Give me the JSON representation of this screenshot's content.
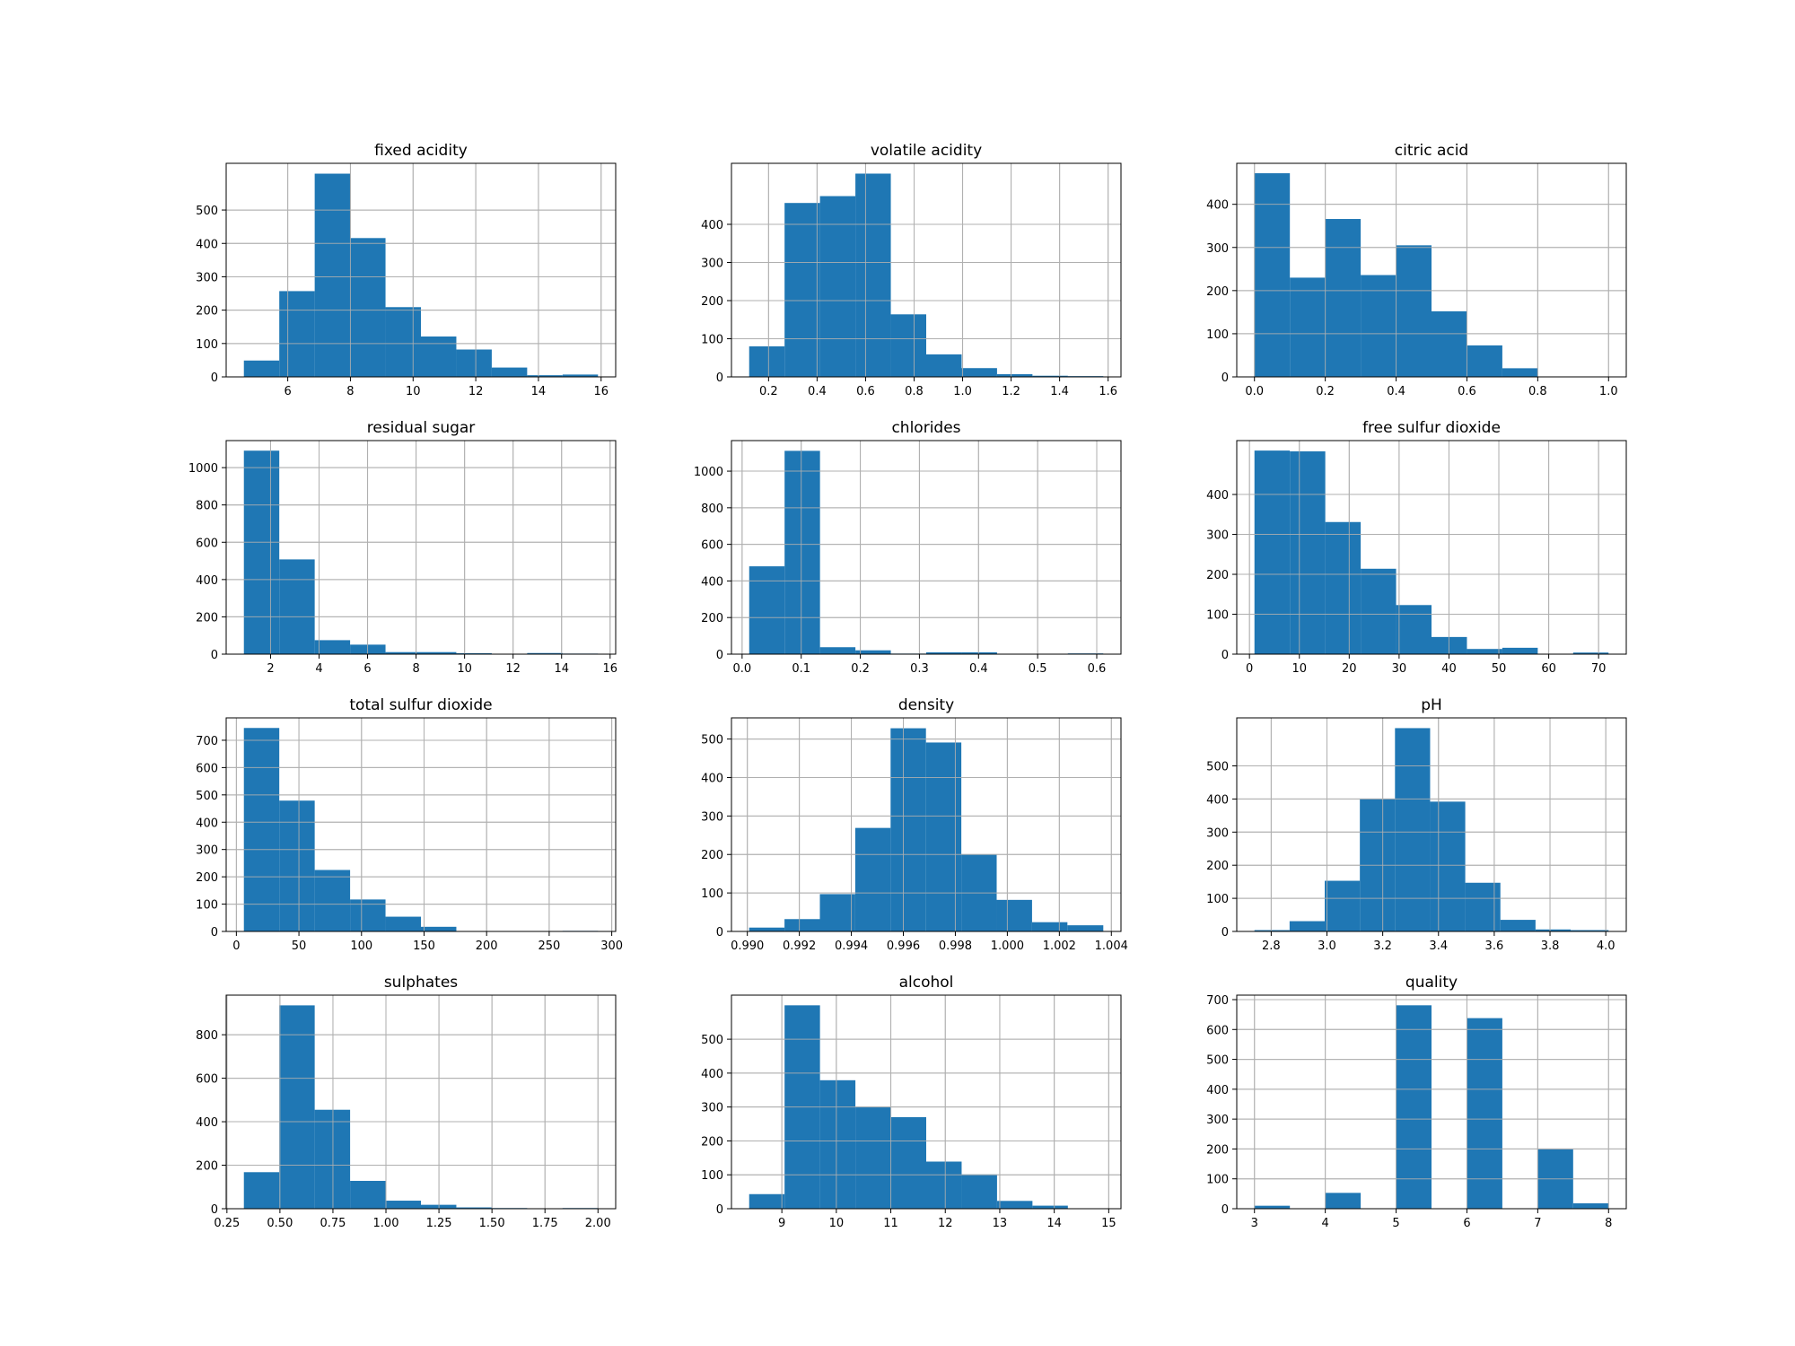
{
  "colors": {
    "bar": "#1f77b4",
    "grid": "#b0b0b0",
    "frame": "#000000"
  },
  "chart_data": [
    {
      "type": "bar",
      "title": "fixed acidity",
      "grid": true,
      "bin_edges": [
        4.6,
        5.73,
        6.86,
        7.99,
        9.12,
        10.25,
        11.38,
        12.51,
        13.64,
        14.77,
        15.9
      ],
      "values": [
        49,
        257,
        609,
        416,
        209,
        121,
        82,
        28,
        5,
        7
      ],
      "xlim": [
        4.035,
        16.465
      ],
      "ylim": [
        0,
        640
      ],
      "xticks": [
        6,
        8,
        10,
        12,
        14,
        16
      ],
      "xtick_labels": [
        "6",
        "8",
        "10",
        "12",
        "14",
        "16"
      ],
      "yticks": [
        0,
        100,
        200,
        300,
        400,
        500
      ],
      "ytick_labels": [
        "0",
        "100",
        "200",
        "300",
        "400",
        "500"
      ]
    },
    {
      "type": "bar",
      "title": "volatile acidity",
      "grid": true,
      "bin_edges": [
        0.12,
        0.266,
        0.412,
        0.558,
        0.704,
        0.85,
        0.996,
        1.142,
        1.288,
        1.434,
        1.58
      ],
      "values": [
        80,
        456,
        474,
        533,
        164,
        59,
        23,
        7,
        3,
        2
      ],
      "xlim": [
        0.047,
        1.653
      ],
      "ylim": [
        0,
        560
      ],
      "xticks": [
        0.2,
        0.4,
        0.6,
        0.8,
        1.0,
        1.2,
        1.4,
        1.6
      ],
      "xtick_labels": [
        "0.2",
        "0.4",
        "0.6",
        "0.8",
        "1.0",
        "1.2",
        "1.4",
        "1.6"
      ],
      "yticks": [
        0,
        100,
        200,
        300,
        400
      ],
      "ytick_labels": [
        "0",
        "100",
        "200",
        "300",
        "400"
      ]
    },
    {
      "type": "bar",
      "title": "citric acid",
      "grid": true,
      "bin_edges": [
        0.0,
        0.1,
        0.2,
        0.3,
        0.4,
        0.5,
        0.6,
        0.7,
        0.8,
        0.9,
        1.0
      ],
      "values": [
        472,
        230,
        366,
        236,
        305,
        152,
        73,
        20,
        0,
        1
      ],
      "xlim": [
        -0.05,
        1.05
      ],
      "ylim": [
        0,
        495
      ],
      "xticks": [
        0.0,
        0.2,
        0.4,
        0.6,
        0.8,
        1.0
      ],
      "xtick_labels": [
        "0.0",
        "0.2",
        "0.4",
        "0.6",
        "0.8",
        "1.0"
      ],
      "yticks": [
        0,
        100,
        200,
        300,
        400
      ],
      "ytick_labels": [
        "0",
        "100",
        "200",
        "300",
        "400"
      ]
    },
    {
      "type": "bar",
      "title": "residual sugar",
      "grid": true,
      "bin_edges": [
        0.9,
        2.36,
        3.82,
        5.28,
        6.74,
        8.2,
        9.66,
        11.12,
        12.58,
        14.04,
        15.5
      ],
      "values": [
        1091,
        508,
        75,
        51,
        11,
        11,
        5,
        0,
        6,
        3
      ],
      "xlim": [
        0.17,
        16.23
      ],
      "ylim": [
        0,
        1145
      ],
      "xticks": [
        2,
        4,
        6,
        8,
        10,
        12,
        14,
        16
      ],
      "xtick_labels": [
        "2",
        "4",
        "6",
        "8",
        "10",
        "12",
        "14",
        "16"
      ],
      "yticks": [
        0,
        200,
        400,
        600,
        800,
        1000
      ],
      "ytick_labels": [
        "0",
        "200",
        "400",
        "600",
        "800",
        "1000"
      ]
    },
    {
      "type": "bar",
      "title": "chlorides",
      "grid": true,
      "bin_edges": [
        0.012,
        0.0719,
        0.1318,
        0.1917,
        0.2516,
        0.3115,
        0.3714,
        0.4313,
        0.4912,
        0.5511,
        0.611
      ],
      "values": [
        480,
        1111,
        38,
        21,
        3,
        10,
        10,
        2,
        0,
        4
      ],
      "xlim": [
        -0.018,
        0.641
      ],
      "ylim": [
        0,
        1167
      ],
      "xticks": [
        0.0,
        0.1,
        0.2,
        0.3,
        0.4,
        0.5,
        0.6
      ],
      "xtick_labels": [
        "0.0",
        "0.1",
        "0.2",
        "0.3",
        "0.4",
        "0.5",
        "0.6"
      ],
      "yticks": [
        0,
        200,
        400,
        600,
        800,
        1000
      ],
      "ytick_labels": [
        "0",
        "200",
        "400",
        "600",
        "800",
        "1000"
      ]
    },
    {
      "type": "bar",
      "title": "free sulfur dioxide",
      "grid": true,
      "bin_edges": [
        1,
        8.1,
        15.2,
        22.3,
        29.4,
        36.5,
        43.6,
        50.7,
        57.8,
        64.9,
        72
      ],
      "values": [
        510,
        508,
        331,
        214,
        123,
        43,
        13,
        16,
        0,
        4
      ],
      "xlim": [
        -2.55,
        75.55
      ],
      "ylim": [
        0,
        535
      ],
      "xticks": [
        0,
        10,
        20,
        30,
        40,
        50,
        60,
        70
      ],
      "xtick_labels": [
        "0",
        "10",
        "20",
        "30",
        "40",
        "50",
        "60",
        "70"
      ],
      "yticks": [
        0,
        100,
        200,
        300,
        400
      ],
      "ytick_labels": [
        "0",
        "100",
        "200",
        "300",
        "400"
      ]
    },
    {
      "type": "bar",
      "title": "total sulfur dioxide",
      "grid": true,
      "bin_edges": [
        6,
        34.3,
        62.6,
        90.9,
        119.2,
        147.5,
        175.8,
        204.1,
        232.4,
        260.7,
        289
      ],
      "values": [
        745,
        479,
        225,
        117,
        54,
        17,
        0,
        0,
        0,
        2
      ],
      "xlim": [
        -8.15,
        303.15
      ],
      "ylim": [
        0,
        782
      ],
      "xticks": [
        0,
        50,
        100,
        150,
        200,
        250,
        300
      ],
      "xtick_labels": [
        "0",
        "50",
        "100",
        "150",
        "200",
        "250",
        "300"
      ],
      "yticks": [
        0,
        100,
        200,
        300,
        400,
        500,
        600,
        700
      ],
      "ytick_labels": [
        "0",
        "100",
        "200",
        "300",
        "400",
        "500",
        "600",
        "700"
      ]
    },
    {
      "type": "bar",
      "title": "density",
      "grid": true,
      "bin_edges": [
        0.99007,
        0.99143,
        0.99279,
        0.99415,
        0.99551,
        0.99687,
        0.99823,
        0.99959,
        1.00095,
        1.00231,
        1.00369
      ],
      "values": [
        10,
        32,
        97,
        269,
        528,
        491,
        200,
        82,
        24,
        16
      ],
      "xlim": [
        0.98939,
        1.00437
      ],
      "ylim": [
        0,
        555
      ],
      "xticks": [
        0.99,
        0.992,
        0.994,
        0.996,
        0.998,
        1.0,
        1.002,
        1.004
      ],
      "xtick_labels": [
        "0.990",
        "0.992",
        "0.994",
        "0.996",
        "0.998",
        "1.000",
        "1.002",
        "1.004"
      ],
      "yticks": [
        0,
        100,
        200,
        300,
        400,
        500
      ],
      "ytick_labels": [
        "0",
        "100",
        "200",
        "300",
        "400",
        "500"
      ]
    },
    {
      "type": "bar",
      "title": "pH",
      "grid": true,
      "bin_edges": [
        2.74,
        2.866,
        2.992,
        3.118,
        3.244,
        3.37,
        3.496,
        3.622,
        3.748,
        3.874,
        4.01
      ],
      "values": [
        4,
        31,
        153,
        400,
        614,
        392,
        147,
        35,
        6,
        4
      ],
      "xlim": [
        2.6765,
        4.0735
      ],
      "ylim": [
        0,
        645
      ],
      "xticks": [
        2.8,
        3.0,
        3.2,
        3.4,
        3.6,
        3.8,
        4.0
      ],
      "xtick_labels": [
        "2.8",
        "3.0",
        "3.2",
        "3.4",
        "3.6",
        "3.8",
        "4.0"
      ],
      "yticks": [
        0,
        100,
        200,
        300,
        400,
        500
      ],
      "ytick_labels": [
        "0",
        "100",
        "200",
        "300",
        "400",
        "500"
      ]
    },
    {
      "type": "bar",
      "title": "sulphates",
      "grid": true,
      "bin_edges": [
        0.33,
        0.497,
        0.664,
        0.831,
        0.998,
        1.165,
        1.332,
        1.499,
        1.666,
        1.833,
        2.0
      ],
      "values": [
        168,
        935,
        455,
        128,
        37,
        18,
        6,
        3,
        1,
        3
      ],
      "xlim": [
        0.2465,
        2.0835
      ],
      "ylim": [
        0,
        982
      ],
      "xticks": [
        0.25,
        0.5,
        0.75,
        1.0,
        1.25,
        1.5,
        1.75,
        2.0
      ],
      "xtick_labels": [
        "0.25",
        "0.50",
        "0.75",
        "1.00",
        "1.25",
        "1.50",
        "1.75",
        "2.00"
      ],
      "yticks": [
        0,
        200,
        400,
        600,
        800
      ],
      "ytick_labels": [
        "0",
        "200",
        "400",
        "600",
        "800"
      ]
    },
    {
      "type": "bar",
      "title": "alcohol",
      "grid": true,
      "bin_edges": [
        8.4,
        9.05,
        9.7,
        10.35,
        11.0,
        11.65,
        12.3,
        12.95,
        13.6,
        14.25,
        14.9
      ],
      "values": [
        43,
        600,
        379,
        300,
        270,
        139,
        101,
        23,
        9,
        1
      ],
      "xlim": [
        8.075,
        15.225
      ],
      "ylim": [
        0,
        630
      ],
      "xticks": [
        9,
        10,
        11,
        12,
        13,
        14,
        15
      ],
      "xtick_labels": [
        "9",
        "10",
        "11",
        "12",
        "13",
        "14",
        "15"
      ],
      "yticks": [
        0,
        100,
        200,
        300,
        400,
        500
      ],
      "ytick_labels": [
        "0",
        "100",
        "200",
        "300",
        "400",
        "500"
      ]
    },
    {
      "type": "bar",
      "title": "quality",
      "grid": true,
      "bin_edges": [
        3.0,
        3.5,
        4.0,
        4.5,
        5.0,
        5.5,
        6.0,
        6.5,
        7.0,
        7.5,
        8.0
      ],
      "values": [
        10,
        0,
        53,
        0,
        681,
        0,
        638,
        0,
        199,
        18
      ],
      "xlim": [
        2.75,
        8.25
      ],
      "ylim": [
        0,
        715
      ],
      "xticks": [
        3,
        4,
        5,
        6,
        7,
        8
      ],
      "xtick_labels": [
        "3",
        "4",
        "5",
        "6",
        "7",
        "8"
      ],
      "yticks": [
        0,
        100,
        200,
        300,
        400,
        500,
        600,
        700
      ],
      "ytick_labels": [
        "0",
        "100",
        "200",
        "300",
        "400",
        "500",
        "600",
        "700"
      ]
    }
  ]
}
